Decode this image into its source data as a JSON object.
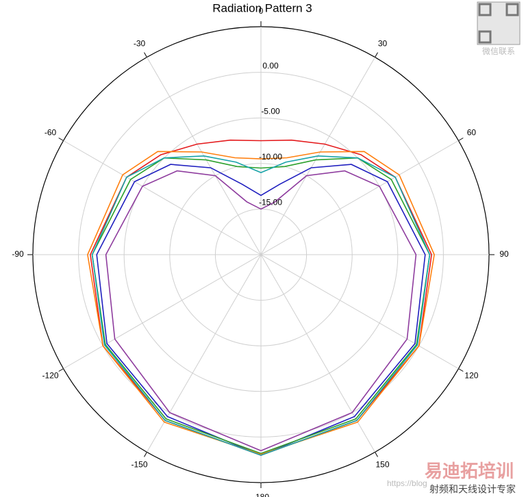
{
  "chart_data": {
    "type": "polar-line",
    "title": "Radiation Pattern 3",
    "x": [
      -180,
      -150,
      -120,
      -90,
      -60,
      -45,
      -30,
      -15,
      0,
      15,
      30,
      45,
      60,
      90,
      120,
      150,
      180
    ],
    "xticks": [
      0,
      30,
      60,
      90,
      120,
      150,
      -180,
      -150,
      -120,
      -90,
      -60,
      -30
    ],
    "rlim": [
      -20,
      5
    ],
    "rticks": [
      {
        "value": 0,
        "label": "0.00"
      },
      {
        "value": -5,
        "label": "-5.00"
      },
      {
        "value": -10,
        "label": "-10.00"
      },
      {
        "value": -15,
        "label": "-15.00"
      }
    ],
    "grid": true,
    "series": [
      {
        "color": "#e41a1c",
        "values": [
          2,
          1,
          0,
          -1.3,
          -3,
          -4.5,
          -6,
          -7,
          -7.5,
          -7,
          -6,
          -4.5,
          -3,
          -1.3,
          0,
          1,
          2
        ]
      },
      {
        "color": "#1f1fbf",
        "values": [
          2,
          0.5,
          -0.5,
          -2,
          -4,
          -6,
          -9,
          -12,
          -13.5,
          -12,
          -9,
          -6,
          -4,
          -2,
          -0.5,
          0.5,
          2
        ]
      },
      {
        "color": "#2ca02c",
        "values": [
          1.8,
          0.8,
          -0.3,
          -1.5,
          -3.5,
          -5,
          -8,
          -10,
          -10.5,
          -10,
          -8,
          -5,
          -3.5,
          -1.5,
          -0.3,
          0.8,
          1.8
        ]
      },
      {
        "color": "#ff7f0e",
        "values": [
          1.9,
          1.2,
          0,
          -1,
          -2.5,
          -4,
          -7,
          -9,
          -9.5,
          -9,
          -7,
          -4,
          -2.5,
          -1,
          0,
          1.2,
          1.9
        ]
      },
      {
        "color": "#8e3c9e",
        "values": [
          1.5,
          0,
          -1.5,
          -3,
          -5,
          -7,
          -10,
          -14,
          -15,
          -14,
          -10,
          -7,
          -5,
          -3,
          -1.5,
          0,
          1.5
        ]
      },
      {
        "color": "#17a2a8",
        "values": [
          2,
          1,
          -0.2,
          -1.5,
          -3,
          -5,
          -7.5,
          -9.5,
          -11,
          -9.5,
          -7.5,
          -5,
          -3,
          -1.5,
          -0.2,
          1,
          2
        ]
      }
    ]
  },
  "watermark": {
    "qr_caption": "微信联系",
    "url": "https://blog",
    "brand": "易迪拓培训",
    "slogan": "射频和天线设计专家"
  }
}
